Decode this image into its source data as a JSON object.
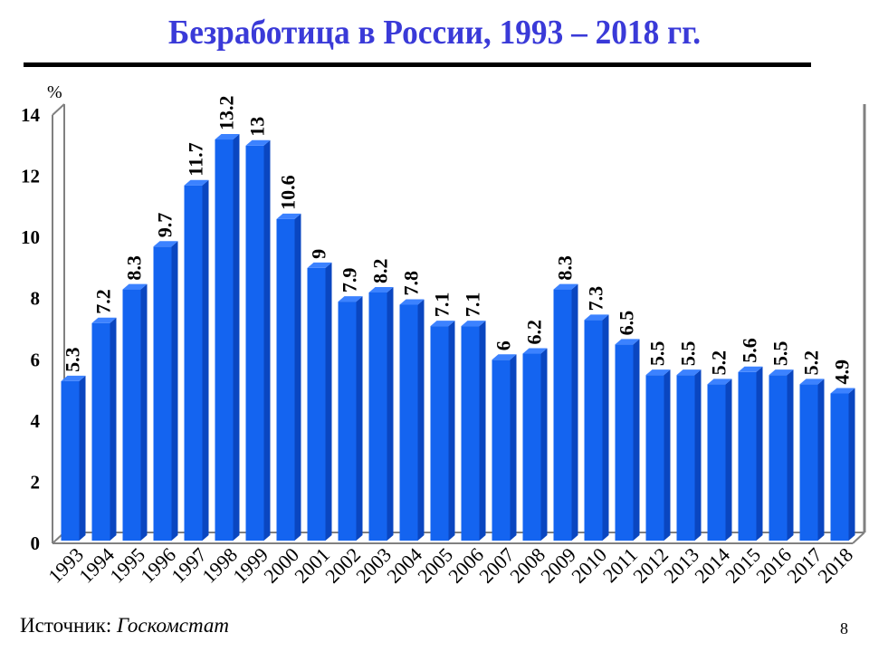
{
  "title": "Безработица в России, 1993 – 2018 гг.",
  "source": {
    "label": "Источник:",
    "organization": "Госкомстат"
  },
  "page_number": "8",
  "colors": {
    "title": "#3a3ad8",
    "bar_front": "#1464f0",
    "bar_side": "#0a46c0",
    "bar_top": "#3c82ff",
    "axis": "#808080"
  },
  "chart_data": {
    "type": "bar",
    "title": "Безработица в России, 1993 – 2018 гг.",
    "xlabel": "",
    "ylabel": "%",
    "ylim": [
      0,
      14
    ],
    "yticks": [
      0,
      2,
      4,
      6,
      8,
      10,
      12,
      14
    ],
    "grid": false,
    "legend": null,
    "style": "3d-column",
    "categories": [
      "1993",
      "1994",
      "1995",
      "1996",
      "1997",
      "1998",
      "1999",
      "2000",
      "2001",
      "2002",
      "2003",
      "2004",
      "2005",
      "2006",
      "2007",
      "2008",
      "2009",
      "2010",
      "2011",
      "2012",
      "2013",
      "2014",
      "2015",
      "2016",
      "2017",
      "2018"
    ],
    "values": [
      5.3,
      7.2,
      8.3,
      9.7,
      11.7,
      13.2,
      13,
      10.6,
      9,
      7.9,
      8.2,
      7.8,
      7.1,
      7.1,
      6,
      6.2,
      8.3,
      7.3,
      6.5,
      5.5,
      5.5,
      5.2,
      5.6,
      5.5,
      5.2,
      4.9
    ],
    "data_labels": [
      "5.3",
      "7.2",
      "8.3",
      "9.7",
      "11.7",
      "13.2",
      "13",
      "10.6",
      "9",
      "7.9",
      "8.2",
      "7.8",
      "7.1",
      "7.1",
      "6",
      "6.2",
      "8.3",
      "7.3",
      "6.5",
      "5.5",
      "5.5",
      "5.2",
      "5.6",
      "5.5",
      "5.2",
      "4.9"
    ]
  }
}
